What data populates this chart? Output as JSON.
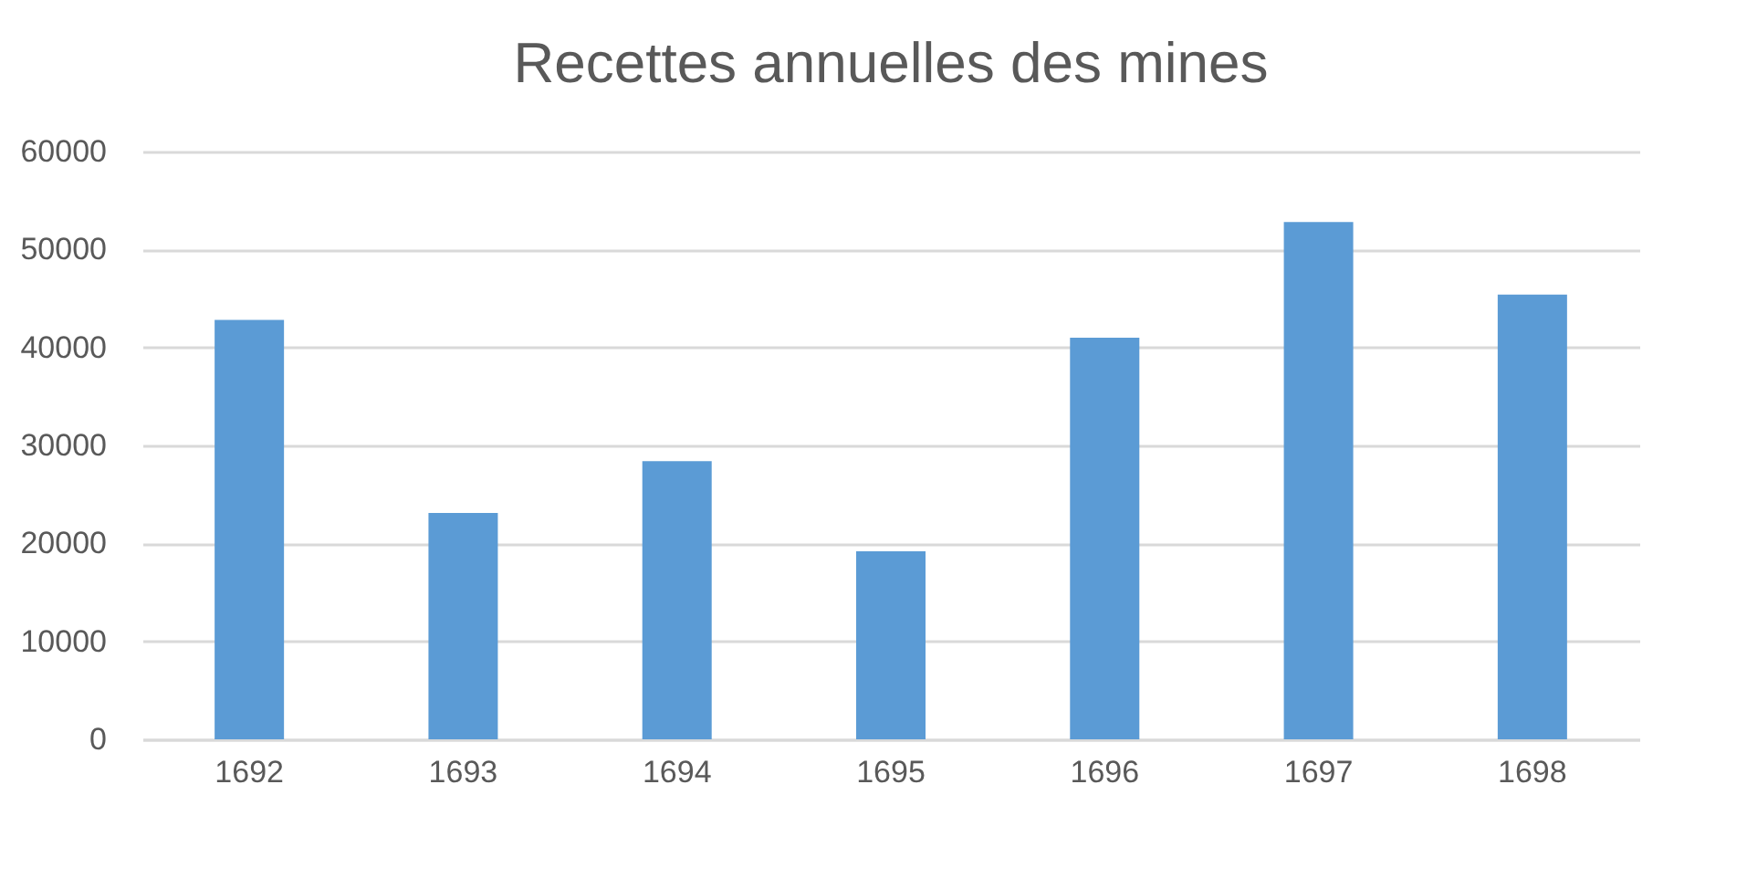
{
  "chart_data": {
    "type": "bar",
    "title": "Recettes annuelles des mines",
    "categories": [
      "1692",
      "1693",
      "1694",
      "1695",
      "1696",
      "1697",
      "1698"
    ],
    "values": [
      42800,
      23100,
      28400,
      19200,
      41000,
      52800,
      45400
    ],
    "color": "#5b9bd5",
    "ylim": [
      0,
      60000
    ],
    "yticks": [
      0,
      10000,
      20000,
      30000,
      40000,
      50000,
      60000
    ],
    "grid": "y"
  }
}
